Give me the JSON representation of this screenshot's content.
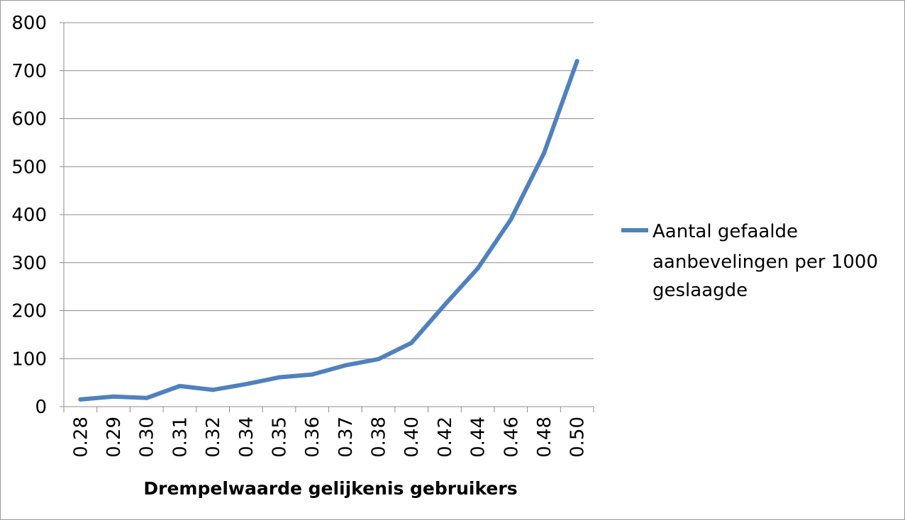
{
  "chart_data": {
    "type": "line",
    "categories": [
      "0.28",
      "0.29",
      "0.30",
      "0.31",
      "0.32",
      "0.34",
      "0.35",
      "0.36",
      "0.37",
      "0.38",
      "0.40",
      "0.42",
      "0.44",
      "0.46",
      "0.48",
      "0.50"
    ],
    "series": [
      {
        "name": "Aantal gefaalde aanbevelingen per 1000 geslaagde",
        "values": [
          15,
          21,
          18,
          43,
          35,
          47,
          61,
          67,
          86,
          99,
          133,
          212,
          288,
          390,
          528,
          720
        ],
        "color": "#4f81bd"
      }
    ],
    "legend_lines": [
      "Aantal gefaalde",
      "aanbevelingen per 1000",
      "geslaagde"
    ],
    "xlabel": "Drempelwaarde gelijkenis gebruikers",
    "ylabel": "",
    "ylim": [
      0,
      800
    ],
    "yticks": [
      "0",
      "100",
      "200",
      "300",
      "400",
      "500",
      "600",
      "700",
      "800"
    ],
    "grid": "horizontal",
    "legend_position": "right"
  }
}
